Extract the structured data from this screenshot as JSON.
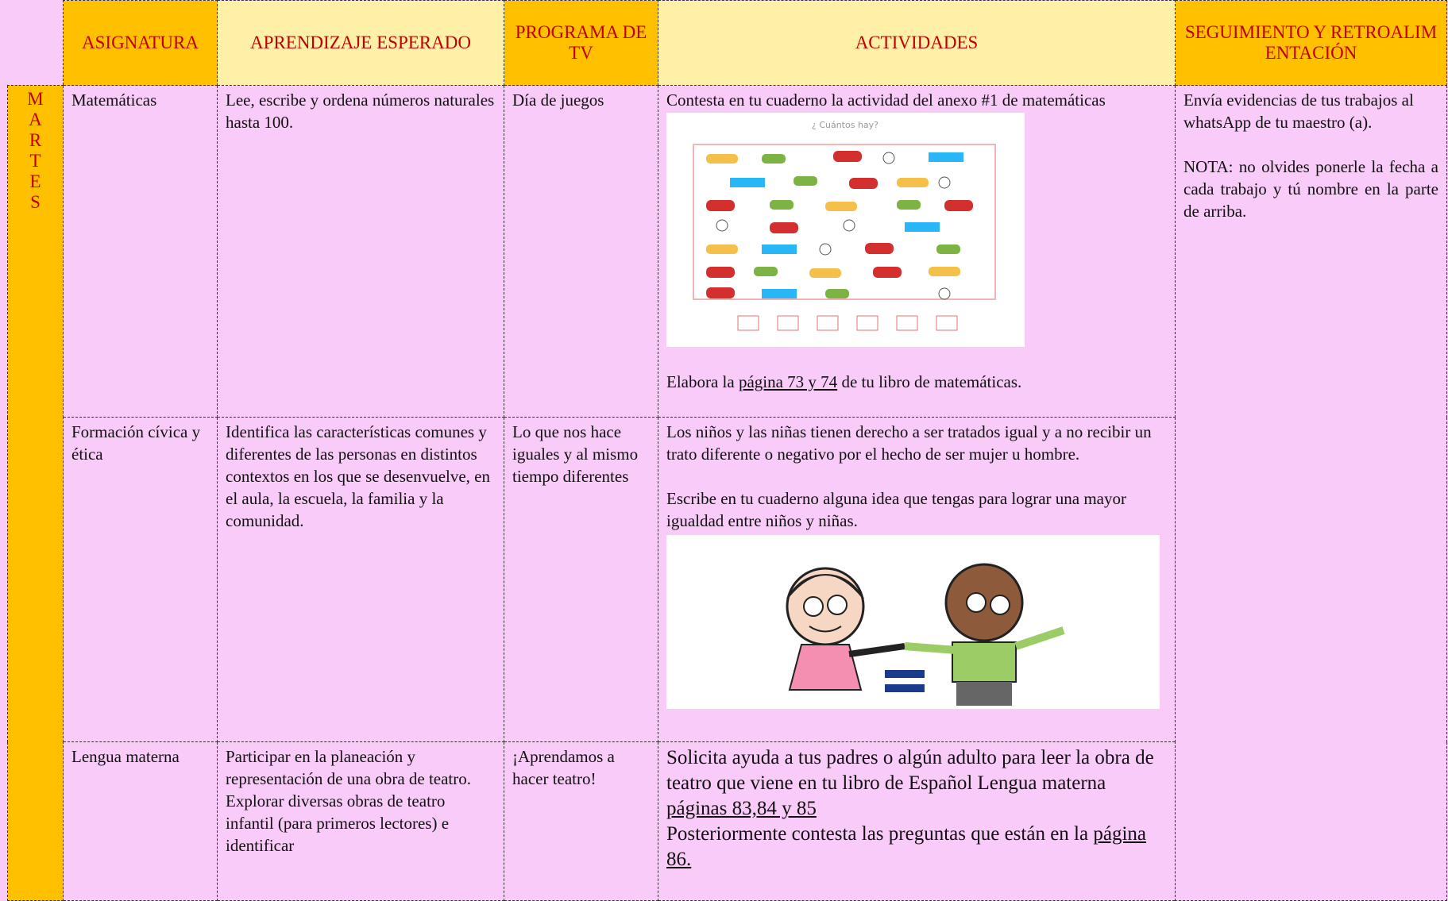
{
  "header": {
    "columns": [
      "ASIGNATURA",
      "APRENDIZAJE ESPERADO",
      "PROGRAMA DE TV",
      "ACTIVIDADES",
      "SEGUIMIENTO Y RETROALIMENTACIÓN"
    ]
  },
  "day": "MARTES",
  "rows": [
    {
      "subject": "Matemáticas",
      "learning": "Lee, escribe y ordena números naturales hasta 100.",
      "program": "Día de juegos",
      "activity_intro": "Contesta en tu cuaderno la actividad del anexo #1 de matemáticas",
      "image_title": "¿ Cuántos hay?",
      "activity_before": "Elabora la ",
      "activity_link": "página 73 y 74",
      "activity_after": " de tu libro de matemáticas."
    },
    {
      "subject": "Formación cívica y ética",
      "learning": "Identifica las características comunes y diferentes de las personas en distintos contextos en los que se desenvuelve, en el aula, la escuela, la familia y la comunidad.",
      "program": "Lo que nos hace iguales y al mismo tiempo diferentes",
      "activity_1": "Los niños y las niñas tienen derecho a ser tratados igual y a no recibir un trato diferente o negativo por el hecho de ser mujer u hombre.",
      "activity_2": "Escribe en tu cuaderno alguna idea que tengas para lograr una mayor igualdad entre niños y niñas."
    },
    {
      "subject": "Lengua materna",
      "learning": "Participar en la planeación y representación de una obra de teatro. Explorar diversas obras de teatro infantil (para primeros lectores) e identificar",
      "program": "¡Aprendamos a hacer teatro!",
      "activity_before": "Solicita ayuda a tus padres o algún adulto para leer la obra de teatro que viene en tu libro de Español Lengua materna ",
      "activity_link": "páginas 83,84 y 85",
      "activity_middle": "Posteriormente contesta las preguntas que están en la ",
      "activity_link_2": "página 86."
    }
  ],
  "follow_up": {
    "text": "Envía evidencias de tus trabajos al whatsApp de tu maestro (a).",
    "note": "NOTA: no olvides ponerle la fecha a cada trabajo y tú nombre en la parte de arriba."
  }
}
